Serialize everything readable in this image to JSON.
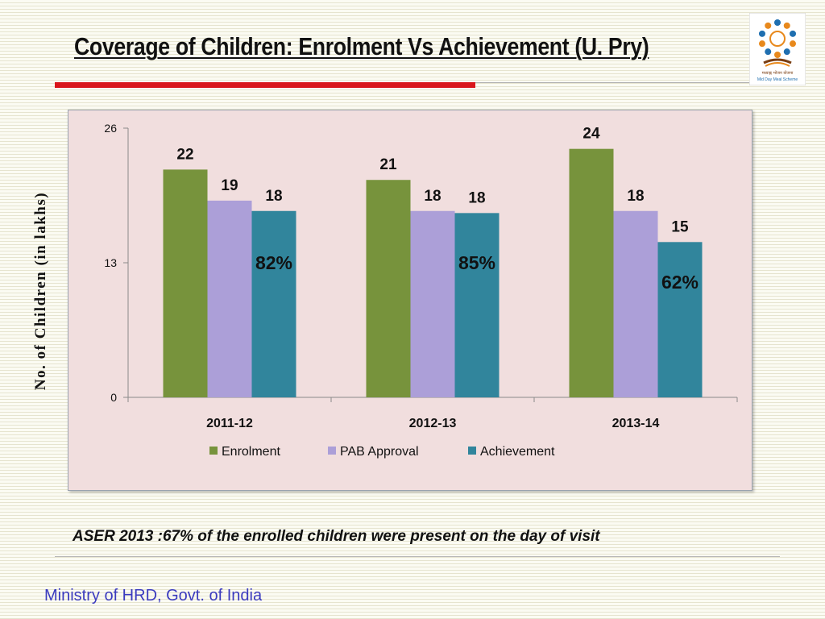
{
  "slide": {
    "title": "Coverage of Children: Enrolment  Vs Achievement (U. Pry)",
    "y_axis_title": "No. of Children (in lakhs)",
    "note": "ASER 2013 :67% of the enrolled children were present on the day of visit",
    "footer": "Ministry of HRD, Govt. of India",
    "logo": {
      "icon": "mid-day-meal-logo",
      "caption_hindi": "मध्याह्न भोजन योजना",
      "caption_english": "Mid Day Meal Scheme",
      "colors": [
        "#1f6fb0",
        "#e8891c",
        "#7a3e12"
      ]
    }
  },
  "chart_data": {
    "type": "bar",
    "categories": [
      "2011-12",
      "2012-13",
      "2013-14"
    ],
    "series": [
      {
        "name": "Enrolment",
        "values": [
          22,
          21,
          24
        ],
        "labels": [
          "22",
          "21",
          "24"
        ],
        "color": "#77933c"
      },
      {
        "name": "PAB Approval",
        "values": [
          19,
          18,
          18
        ],
        "labels": [
          "19",
          "18",
          "18"
        ],
        "color": "#ac9fd8"
      },
      {
        "name": "Achievement",
        "values": [
          18,
          17.8,
          15
        ],
        "labels": [
          "18",
          "18",
          "15"
        ],
        "color": "#31859c"
      }
    ],
    "annotations": [
      "82%",
      "85%",
      "62%"
    ],
    "yticks": [
      "0",
      "13",
      "26"
    ],
    "ylim": [
      0,
      26
    ],
    "grid": false,
    "legend": "bottom"
  }
}
